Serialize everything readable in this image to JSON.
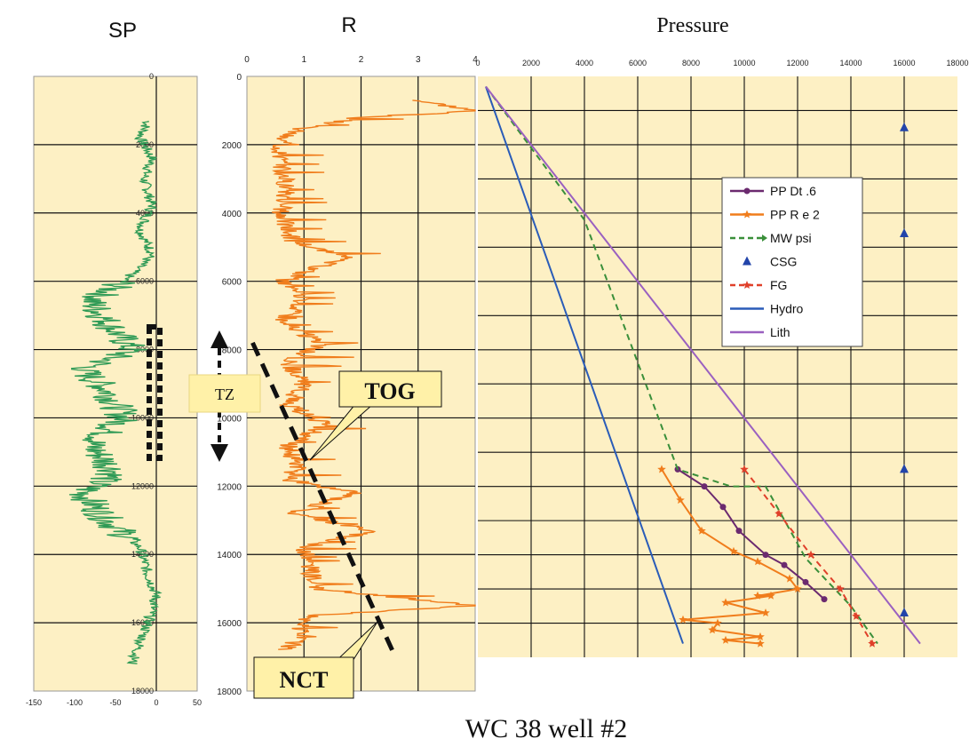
{
  "caption": "WC 38 well #2",
  "chart_data": [
    {
      "type": "line",
      "title": "SP",
      "xlim": [
        -150,
        50
      ],
      "x_ticks": [
        -150,
        -100,
        -50,
        0,
        50
      ],
      "depth_ticks": [
        0,
        2000,
        4000,
        6000,
        8000,
        10000,
        12000,
        14000,
        16000,
        18000
      ],
      "y_inverted": true,
      "grid": true,
      "series": [
        {
          "color": "#2e9a55",
          "points": [
            [
              -10,
              1300
            ],
            [
              -20,
              1800
            ],
            [
              -5,
              2400
            ],
            [
              -15,
              3000
            ],
            [
              -5,
              3800
            ],
            [
              -20,
              4500
            ],
            [
              -5,
              5200
            ],
            [
              -40,
              6000
            ],
            [
              -80,
              6600
            ],
            [
              -60,
              7200
            ],
            [
              -30,
              8000
            ],
            [
              -90,
              8600
            ],
            [
              -60,
              9200
            ],
            [
              -40,
              10000
            ],
            [
              -80,
              10800
            ],
            [
              -50,
              11600
            ],
            [
              -90,
              12200
            ],
            [
              -60,
              13000
            ],
            [
              -20,
              13800
            ],
            [
              -10,
              14600
            ],
            [
              0,
              15200
            ],
            [
              -10,
              16000
            ],
            [
              -20,
              16600
            ],
            [
              -30,
              17200
            ]
          ]
        }
      ]
    },
    {
      "type": "line",
      "title": "R",
      "xlim": [
        0,
        4
      ],
      "x_ticks": [
        0,
        1,
        2,
        3,
        4
      ],
      "ylim": [
        0,
        18000
      ],
      "y_ticks": [
        0,
        2000,
        4000,
        6000,
        8000,
        10000,
        12000,
        14000,
        16000,
        18000
      ],
      "y_inverted": true,
      "grid": true,
      "series": [
        {
          "color": "#f07d1c",
          "points": [
            [
              3.0,
              700
            ],
            [
              4.0,
              1000
            ],
            [
              2.0,
              1200
            ],
            [
              1.0,
              1500
            ],
            [
              0.6,
              1800
            ],
            [
              0.6,
              2500
            ],
            [
              0.7,
              3200
            ],
            [
              0.6,
              4000
            ],
            [
              0.8,
              4800
            ],
            [
              1.7,
              5300
            ],
            [
              0.6,
              6000
            ],
            [
              1.0,
              6600
            ],
            [
              0.6,
              7200
            ],
            [
              1.3,
              7800
            ],
            [
              0.7,
              8400
            ],
            [
              1.0,
              9000
            ],
            [
              0.7,
              9600
            ],
            [
              1.4,
              10200
            ],
            [
              0.7,
              10800
            ],
            [
              0.9,
              11400
            ],
            [
              0.7,
              11800
            ],
            [
              1.9,
              12200
            ],
            [
              0.8,
              12800
            ],
            [
              2.2,
              13300
            ],
            [
              1.0,
              13800
            ],
            [
              1.1,
              14400
            ],
            [
              1.2,
              15000
            ],
            [
              4.0,
              15500
            ],
            [
              1.0,
              15800
            ],
            [
              0.9,
              16400
            ],
            [
              0.7,
              16800
            ]
          ]
        }
      ],
      "annotations": [
        {
          "label": "TOG",
          "x": 1.2,
          "y": 11300
        },
        {
          "label": "NCT",
          "x": 2.3,
          "y": 16000
        },
        {
          "label": "TZ"
        }
      ],
      "nct_trend": [
        [
          0.1,
          7800
        ],
        [
          2.6,
          17000
        ]
      ],
      "tz_range": [
        7500,
        11300
      ]
    },
    {
      "type": "line",
      "title": "Pressure",
      "xlim": [
        0,
        18000
      ],
      "x_ticks": [
        0,
        2000,
        4000,
        6000,
        8000,
        10000,
        12000,
        14000,
        16000,
        18000
      ],
      "y_inverted": true,
      "grid": true,
      "legend": "top-right",
      "series": [
        {
          "name": "PP Dt .6",
          "color": "#6b2a6f",
          "marker": "circle",
          "points": [
            [
              7500,
              11500
            ],
            [
              8500,
              12000
            ],
            [
              9200,
              12600
            ],
            [
              9800,
              13300
            ],
            [
              10800,
              14000
            ],
            [
              11500,
              14300
            ],
            [
              12300,
              14800
            ],
            [
              13000,
              15300
            ]
          ]
        },
        {
          "name": "PP R e 2",
          "color": "#f07d1c",
          "marker": "star",
          "points": [
            [
              6900,
              11500
            ],
            [
              7600,
              12400
            ],
            [
              8400,
              13300
            ],
            [
              9600,
              13900
            ],
            [
              10500,
              14200
            ],
            [
              11700,
              14700
            ],
            [
              12000,
              15000
            ],
            [
              10500,
              15200
            ],
            [
              11000,
              15200
            ],
            [
              9300,
              15400
            ],
            [
              10800,
              15700
            ],
            [
              7700,
              15900
            ],
            [
              9000,
              16000
            ],
            [
              8800,
              16200
            ],
            [
              10600,
              16400
            ],
            [
              9300,
              16500
            ],
            [
              10600,
              16600
            ]
          ]
        },
        {
          "name": "MW psi",
          "color": "#3a8f3a",
          "dash": true,
          "points": [
            [
              300,
              300
            ],
            [
              4000,
              4200
            ],
            [
              7500,
              11500
            ],
            [
              9500,
              12000
            ],
            [
              10800,
              12000
            ],
            [
              12300,
              14100
            ],
            [
              14000,
              15500
            ],
            [
              15000,
              16600
            ]
          ]
        },
        {
          "name": "CSG",
          "color": "#2244aa",
          "marker": "triangle",
          "points": [
            [
              16000,
              1500
            ],
            [
              16000,
              4600
            ],
            [
              16000,
              11500
            ],
            [
              16000,
              15700
            ]
          ]
        },
        {
          "name": "FG",
          "color": "#e0402a",
          "dash": true,
          "marker": "star",
          "points": [
            [
              10000,
              11500
            ],
            [
              11300,
              12800
            ],
            [
              12500,
              14000
            ],
            [
              13600,
              15000
            ],
            [
              14200,
              15800
            ],
            [
              14800,
              16600
            ]
          ]
        },
        {
          "name": "Hydro",
          "color": "#2a5cb8",
          "points": [
            [
              300,
              300
            ],
            [
              7700,
              16600
            ]
          ]
        },
        {
          "name": "Lith",
          "color": "#9a60c0",
          "points": [
            [
              300,
              300
            ],
            [
              16600,
              16600
            ]
          ]
        }
      ]
    }
  ]
}
